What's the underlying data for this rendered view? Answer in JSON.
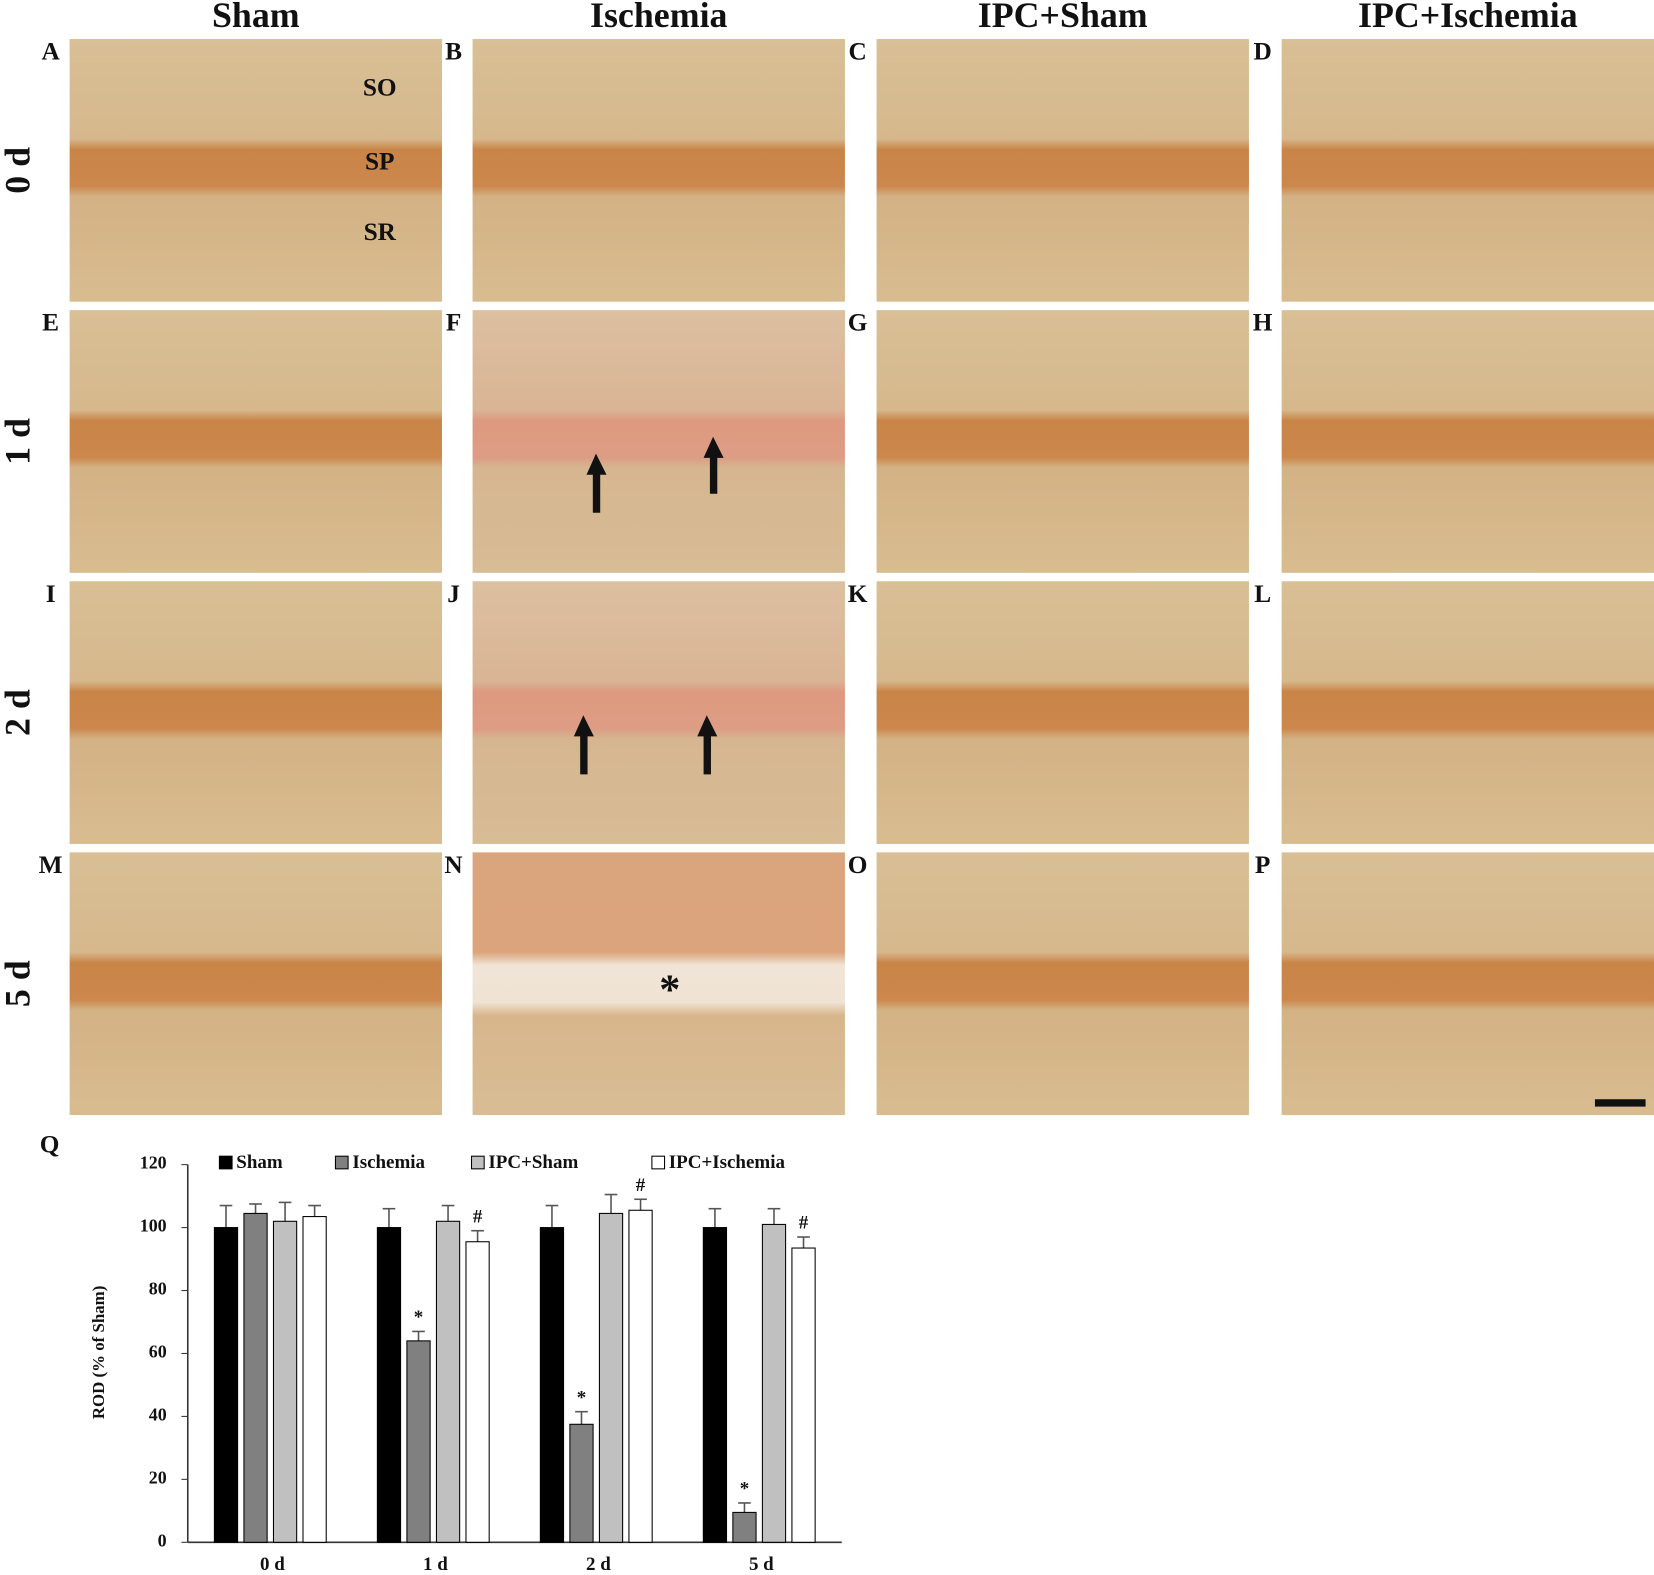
{
  "figure": {
    "columns": [
      "Sham",
      "Ischemia",
      "IPC+Sham",
      "IPC+Ischemia"
    ],
    "rows": [
      "0 d",
      "1 d",
      "2 d",
      "5 d"
    ],
    "panels": [
      "A",
      "B",
      "C",
      "D",
      "E",
      "F",
      "G",
      "H",
      "I",
      "J",
      "K",
      "L",
      "M",
      "N",
      "O",
      "P"
    ],
    "layers": [
      "SO",
      "SP",
      "SR"
    ],
    "lesion_mark": "*"
  },
  "chart_data": {
    "type": "bar",
    "panel": "Q",
    "y_label": "ROD (% of Sham)",
    "categories": [
      "0 d",
      "1 d",
      "2 d",
      "5 d"
    ],
    "series": [
      {
        "name": "Sham",
        "color": "#000000",
        "values": [
          100,
          100,
          100,
          100
        ],
        "errors": [
          7,
          6,
          7,
          6
        ],
        "markers": [
          null,
          null,
          null,
          null
        ]
      },
      {
        "name": "Ischemia",
        "color": "#808080",
        "values": [
          104.5,
          64,
          37.5,
          9.5
        ],
        "errors": [
          3,
          3,
          4,
          3
        ],
        "markers": [
          null,
          "*",
          "*",
          "*"
        ]
      },
      {
        "name": "IPC+Sham",
        "color": "#c0c0c0",
        "values": [
          102,
          102,
          104.5,
          101
        ],
        "errors": [
          6,
          5,
          6,
          5
        ],
        "markers": [
          null,
          null,
          null,
          null
        ]
      },
      {
        "name": "IPC+Ischemia",
        "color": "#ffffff",
        "values": [
          103.5,
          95.5,
          105.5,
          93.5
        ],
        "errors": [
          3.5,
          3.5,
          3.5,
          3.5
        ],
        "markers": [
          null,
          "#",
          "#",
          "#"
        ]
      }
    ],
    "ylim": [
      0,
      120
    ],
    "yticks": [
      0,
      20,
      40,
      60,
      80,
      100,
      120
    ]
  }
}
